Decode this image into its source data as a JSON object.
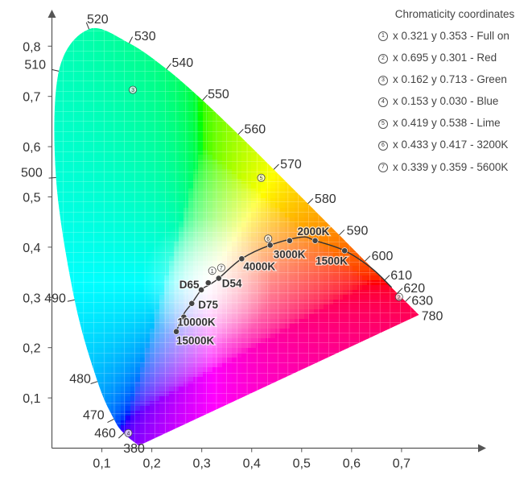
{
  "chart_data": {
    "type": "scatter",
    "title": "",
    "xlabel": "",
    "ylabel": "",
    "xlim": [
      0,
      0.75
    ],
    "ylim": [
      0,
      0.85
    ],
    "x_ticks": [
      {
        "value": 0.1,
        "label": "0,1"
      },
      {
        "value": 0.2,
        "label": "0,2"
      },
      {
        "value": 0.3,
        "label": "0,3"
      },
      {
        "value": 0.4,
        "label": "0,4"
      },
      {
        "value": 0.5,
        "label": "0,5"
      },
      {
        "value": 0.6,
        "label": "0,6"
      },
      {
        "value": 0.7,
        "label": "0,7"
      }
    ],
    "y_ticks": [
      {
        "value": 0.1,
        "label": "0,1"
      },
      {
        "value": 0.2,
        "label": "0,2"
      },
      {
        "value": 0.3,
        "label": "0,3"
      },
      {
        "value": 0.4,
        "label": "0,4"
      },
      {
        "value": 0.5,
        "label": "0,5"
      },
      {
        "value": 0.6,
        "label": "0,6"
      },
      {
        "value": 0.7,
        "label": "0,7"
      },
      {
        "value": 0.8,
        "label": "0,8"
      }
    ],
    "spectral_locus": [
      {
        "nm": "380",
        "x": 0.1741,
        "y": 0.005
      },
      {
        "nm": "460",
        "x": 0.144,
        "y": 0.0297
      },
      {
        "nm": "470",
        "x": 0.1241,
        "y": 0.0578
      },
      {
        "nm": "480",
        "x": 0.0913,
        "y": 0.1327
      },
      {
        "nm": "490",
        "x": 0.0454,
        "y": 0.295
      },
      {
        "nm": "500",
        "x": 0.0082,
        "y": 0.5384
      },
      {
        "nm": "510",
        "x": 0.0139,
        "y": 0.7502
      },
      {
        "nm": "520",
        "x": 0.0743,
        "y": 0.8338
      },
      {
        "nm": "530",
        "x": 0.1547,
        "y": 0.8059
      },
      {
        "nm": "540",
        "x": 0.2296,
        "y": 0.7543
      },
      {
        "nm": "550",
        "x": 0.3016,
        "y": 0.6923
      },
      {
        "nm": "560",
        "x": 0.3731,
        "y": 0.6245
      },
      {
        "nm": "570",
        "x": 0.4441,
        "y": 0.5547
      },
      {
        "nm": "580",
        "x": 0.5125,
        "y": 0.4866
      },
      {
        "nm": "590",
        "x": 0.5752,
        "y": 0.4242
      },
      {
        "nm": "600",
        "x": 0.627,
        "y": 0.3725
      },
      {
        "nm": "610",
        "x": 0.6658,
        "y": 0.334
      },
      {
        "nm": "620",
        "x": 0.6915,
        "y": 0.3083
      },
      {
        "nm": "630",
        "x": 0.7079,
        "y": 0.292
      },
      {
        "nm": "780",
        "x": 0.7347,
        "y": 0.2653
      }
    ],
    "locus_labels": [
      {
        "text": "520",
        "x": 0.07,
        "y": 0.845
      },
      {
        "text": "530",
        "x": 0.165,
        "y": 0.812
      },
      {
        "text": "540",
        "x": 0.24,
        "y": 0.759
      },
      {
        "text": "550",
        "x": 0.312,
        "y": 0.696
      },
      {
        "text": "560",
        "x": 0.385,
        "y": 0.627
      },
      {
        "text": "570",
        "x": 0.457,
        "y": 0.557
      },
      {
        "text": "580",
        "x": 0.526,
        "y": 0.488
      },
      {
        "text": "590",
        "x": 0.59,
        "y": 0.425
      },
      {
        "text": "600",
        "x": 0.64,
        "y": 0.374
      },
      {
        "text": "610",
        "x": 0.678,
        "y": 0.336
      },
      {
        "text": "620",
        "x": 0.704,
        "y": 0.31
      },
      {
        "text": "630",
        "x": 0.72,
        "y": 0.285
      },
      {
        "text": "780",
        "x": 0.74,
        "y": 0.255
      },
      {
        "text": "510",
        "x": -0.055,
        "y": 0.755
      },
      {
        "text": "500",
        "x": -0.062,
        "y": 0.54
      },
      {
        "text": "490",
        "x": -0.015,
        "y": 0.29
      },
      {
        "text": "480",
        "x": 0.035,
        "y": 0.13
      },
      {
        "text": "470",
        "x": 0.062,
        "y": 0.058
      },
      {
        "text": "460",
        "x": 0.085,
        "y": 0.022
      },
      {
        "text": "380",
        "x": 0.143,
        "y": -0.0085
      }
    ],
    "planckian_locus": [
      {
        "x": 0.249,
        "y": 0.232
      },
      {
        "x": 0.264,
        "y": 0.267
      },
      {
        "x": 0.28,
        "y": 0.288
      },
      {
        "x": 0.299,
        "y": 0.315
      },
      {
        "x": 0.315,
        "y": 0.325
      },
      {
        "x": 0.334,
        "y": 0.338
      },
      {
        "x": 0.38,
        "y": 0.377
      },
      {
        "x": 0.437,
        "y": 0.404
      },
      {
        "x": 0.5,
        "y": 0.42
      },
      {
        "x": 0.527,
        "y": 0.413
      },
      {
        "x": 0.586,
        "y": 0.393
      },
      {
        "x": 0.64,
        "y": 0.358
      },
      {
        "x": 0.68,
        "y": 0.32
      }
    ],
    "cct_points": [
      {
        "label": "15000K",
        "x": 0.249,
        "y": 0.232
      },
      {
        "label": "10000K",
        "x": 0.264,
        "y": 0.261
      },
      {
        "label": "D75",
        "x": 0.28,
        "y": 0.288
      },
      {
        "label": "",
        "x": 0.299,
        "y": 0.315
      },
      {
        "label": "D65",
        "x": 0.313,
        "y": 0.329
      },
      {
        "label": "D54",
        "x": 0.334,
        "y": 0.338
      },
      {
        "label": "4000K",
        "x": 0.38,
        "y": 0.377
      },
      {
        "label": "3000K",
        "x": 0.437,
        "y": 0.404
      },
      {
        "label": "",
        "x": 0.476,
        "y": 0.413
      },
      {
        "label": "2000K",
        "x": 0.527,
        "y": 0.413
      },
      {
        "label": "1500K",
        "x": 0.586,
        "y": 0.393
      }
    ],
    "cct_label_offsets_note": "",
    "numbered_points": [
      {
        "n": "1",
        "x": 0.321,
        "y": 0.353
      },
      {
        "n": "2",
        "x": 0.695,
        "y": 0.301
      },
      {
        "n": "3",
        "x": 0.162,
        "y": 0.713
      },
      {
        "n": "4",
        "x": 0.153,
        "y": 0.03
      },
      {
        "n": "5",
        "x": 0.419,
        "y": 0.538
      },
      {
        "n": "6",
        "x": 0.433,
        "y": 0.417
      },
      {
        "n": "7",
        "x": 0.339,
        "y": 0.359
      }
    ],
    "colors": {
      "axis": "#555555",
      "text": "#333333",
      "curve": "#333333",
      "point": "#444444",
      "grid": "#ffffff"
    }
  },
  "legend": {
    "title": "Chromaticity coordinates",
    "items": [
      {
        "marker": "1",
        "text": "x 0.321   y 0.353 - Full on"
      },
      {
        "marker": "2",
        "text": "x 0.695   y 0.301 - Red"
      },
      {
        "marker": "3",
        "text": "x 0.162   y 0.713 - Green"
      },
      {
        "marker": "4",
        "text": "x 0.153   y 0.030 - Blue"
      },
      {
        "marker": "5",
        "text": "x 0.419   y 0.538 - Lime"
      },
      {
        "marker": "6",
        "text": "x 0.433   y 0.417 - 3200K"
      },
      {
        "marker": "7",
        "text": "x 0.339   y 0.359 - 5600K"
      }
    ]
  }
}
